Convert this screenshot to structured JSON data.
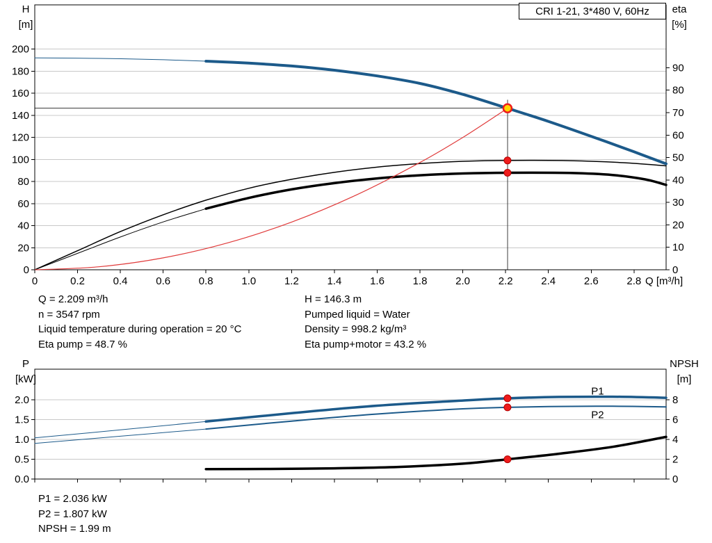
{
  "title_box": "CRI 1-21, 3*480 V, 60Hz",
  "colors": {
    "blue": "#1c5a8a",
    "black": "#000000",
    "red": "#e03a3a",
    "dot_red": "#ee1c1c",
    "duty_fill": "#ffd500",
    "grid": "#c8c8c8",
    "crosshair": "#3c3c3c"
  },
  "info_top": {
    "left": [
      "Q = 2.209 m³/h",
      "n = 3547 rpm",
      "Liquid temperature during operation = 20 °C",
      "Eta pump = 48.7 %"
    ],
    "right": [
      "H = 146.3 m",
      "Pumped liquid = Water",
      "Density = 998.2 kg/m³",
      "Eta pump+motor = 43.2 %"
    ]
  },
  "info_bottom": [
    "P1 = 2.036 kW",
    "P2 = 1.807 kW",
    "NPSH = 1.99 m"
  ],
  "chart_data": [
    {
      "type": "line",
      "title": "CRI 1-21, 3*480 V, 60Hz",
      "xlabel": "Q [m³/h]",
      "ylabel_left_lines": [
        "H",
        "[m]"
      ],
      "ylabel_right_lines": [
        "eta",
        "[%]"
      ],
      "xlim": [
        0,
        2.95
      ],
      "ylim_left": [
        0,
        240
      ],
      "ylim_right": [
        0,
        118
      ],
      "grid": "horizontal",
      "x_ticks": [
        {
          "v": 0,
          "t": "0"
        },
        {
          "v": 0.2,
          "t": "0.2"
        },
        {
          "v": 0.4,
          "t": "0.4"
        },
        {
          "v": 0.6,
          "t": "0.6"
        },
        {
          "v": 0.8,
          "t": "0.8"
        },
        {
          "v": 1.0,
          "t": "1.0"
        },
        {
          "v": 1.2,
          "t": "1.2"
        },
        {
          "v": 1.4,
          "t": "1.4"
        },
        {
          "v": 1.6,
          "t": "1.6"
        },
        {
          "v": 1.8,
          "t": "1.8"
        },
        {
          "v": 2.0,
          "t": "2.0"
        },
        {
          "v": 2.2,
          "t": "2.2"
        },
        {
          "v": 2.4,
          "t": "2.4"
        },
        {
          "v": 2.6,
          "t": "2.6"
        },
        {
          "v": 2.8,
          "t": "2.8"
        }
      ],
      "y_ticks_left": [
        {
          "v": 0,
          "t": "0"
        },
        {
          "v": 20,
          "t": "20"
        },
        {
          "v": 40,
          "t": "40"
        },
        {
          "v": 60,
          "t": "60"
        },
        {
          "v": 80,
          "t": "80"
        },
        {
          "v": 100,
          "t": "100"
        },
        {
          "v": 120,
          "t": "120"
        },
        {
          "v": 140,
          "t": "140"
        },
        {
          "v": 160,
          "t": "160"
        },
        {
          "v": 180,
          "t": "180"
        },
        {
          "v": 200,
          "t": "200"
        }
      ],
      "y_ticks_right": [
        {
          "v": 0,
          "t": "0"
        },
        {
          "v": 10,
          "t": "10"
        },
        {
          "v": 20,
          "t": "20"
        },
        {
          "v": 30,
          "t": "30"
        },
        {
          "v": 40,
          "t": "40"
        },
        {
          "v": 50,
          "t": "50"
        },
        {
          "v": 60,
          "t": "60"
        },
        {
          "v": 70,
          "t": "70"
        },
        {
          "v": 80,
          "t": "80"
        },
        {
          "v": 90,
          "t": "90"
        }
      ],
      "series": [
        {
          "name": "head-ext",
          "axis": "left",
          "color": "blue",
          "width": 1,
          "points": [
            [
              0,
              192
            ],
            [
              0.3,
              191.5
            ],
            [
              0.6,
              190.3
            ],
            [
              0.8,
              189
            ]
          ]
        },
        {
          "name": "head",
          "axis": "left",
          "color": "blue",
          "width": 4,
          "points": [
            [
              0.8,
              189
            ],
            [
              1.0,
              187.2
            ],
            [
              1.2,
              184.6
            ],
            [
              1.4,
              180.8
            ],
            [
              1.6,
              175.6
            ],
            [
              1.8,
              168.8
            ],
            [
              2.0,
              158.9
            ],
            [
              2.209,
              146.3
            ],
            [
              2.4,
              134.4
            ],
            [
              2.6,
              120.9
            ],
            [
              2.8,
              106.9
            ],
            [
              2.95,
              96
            ]
          ]
        },
        {
          "name": "eta-pump",
          "axis": "right",
          "color": "black",
          "width": 1.5,
          "points": [
            [
              0,
              0
            ],
            [
              0.2,
              8.5
            ],
            [
              0.4,
              17
            ],
            [
              0.6,
              24.5
            ],
            [
              0.8,
              31
            ],
            [
              1.0,
              36.3
            ],
            [
              1.2,
              40.3
            ],
            [
              1.4,
              43.4
            ],
            [
              1.6,
              45.7
            ],
            [
              1.8,
              47.3
            ],
            [
              2.0,
              48.3
            ],
            [
              2.209,
              48.7
            ],
            [
              2.5,
              48.6
            ],
            [
              2.75,
              47.7
            ],
            [
              2.95,
              46.3
            ]
          ]
        },
        {
          "name": "eta-pump-motor-ext",
          "axis": "right",
          "color": "black",
          "width": 1,
          "points": [
            [
              0,
              0
            ],
            [
              0.2,
              7.3
            ],
            [
              0.4,
              14.6
            ],
            [
              0.6,
              21.3
            ],
            [
              0.8,
              27.2
            ]
          ]
        },
        {
          "name": "eta-pump-motor",
          "axis": "right",
          "color": "black",
          "width": 3.5,
          "points": [
            [
              0.8,
              27.2
            ],
            [
              1.0,
              32
            ],
            [
              1.2,
              35.8
            ],
            [
              1.4,
              38.6
            ],
            [
              1.6,
              40.7
            ],
            [
              1.8,
              42.1
            ],
            [
              2.0,
              42.9
            ],
            [
              2.209,
              43.2
            ],
            [
              2.5,
              43.1
            ],
            [
              2.7,
              42.2
            ],
            [
              2.85,
              40.3
            ],
            [
              2.95,
              37.8
            ]
          ]
        },
        {
          "name": "system-curve",
          "axis": "left",
          "color": "red",
          "width": 1.2,
          "points": [
            [
              0,
              0
            ],
            [
              0.3,
              2.7
            ],
            [
              0.6,
              10.8
            ],
            [
              0.9,
              24.3
            ],
            [
              1.2,
              43.2
            ],
            [
              1.5,
              67.5
            ],
            [
              1.8,
              97.2
            ],
            [
              2.0,
              119.9
            ],
            [
              2.209,
              146.3
            ]
          ]
        }
      ],
      "crosshair": {
        "x": 2.209,
        "y": 146.3
      },
      "markers": [
        {
          "x": 2.209,
          "y": 146.3,
          "axis": "left",
          "kind": "duty"
        },
        {
          "x": 2.209,
          "y": 48.7,
          "axis": "right",
          "kind": "dot"
        },
        {
          "x": 2.209,
          "y": 43.2,
          "axis": "right",
          "kind": "dot"
        }
      ],
      "labels": []
    },
    {
      "type": "line",
      "title": "",
      "xlabel": "",
      "ylabel_left_lines": [
        "P",
        "[kW]"
      ],
      "ylabel_right_lines": [
        "NPSH",
        "[m]"
      ],
      "xlim": [
        0,
        2.95
      ],
      "ylim_left": [
        0,
        2.77
      ],
      "ylim_right": [
        0,
        11.08
      ],
      "grid": "horizontal",
      "x_ticks": [
        {
          "v": 0,
          "t": ""
        },
        {
          "v": 0.2,
          "t": ""
        },
        {
          "v": 0.4,
          "t": ""
        },
        {
          "v": 0.6,
          "t": ""
        },
        {
          "v": 0.8,
          "t": ""
        },
        {
          "v": 1.0,
          "t": ""
        },
        {
          "v": 1.2,
          "t": ""
        },
        {
          "v": 1.4,
          "t": ""
        },
        {
          "v": 1.6,
          "t": ""
        },
        {
          "v": 1.8,
          "t": ""
        },
        {
          "v": 2.0,
          "t": ""
        },
        {
          "v": 2.2,
          "t": ""
        },
        {
          "v": 2.4,
          "t": ""
        },
        {
          "v": 2.6,
          "t": ""
        },
        {
          "v": 2.8,
          "t": ""
        }
      ],
      "y_ticks_left": [
        {
          "v": 0,
          "t": "0.0"
        },
        {
          "v": 0.5,
          "t": "0.5"
        },
        {
          "v": 1.0,
          "t": "1.0"
        },
        {
          "v": 1.5,
          "t": "1.5"
        },
        {
          "v": 2.0,
          "t": "2.0"
        }
      ],
      "y_ticks_right": [
        {
          "v": 0,
          "t": "0"
        },
        {
          "v": 2,
          "t": "2"
        },
        {
          "v": 4,
          "t": "4"
        },
        {
          "v": 6,
          "t": "6"
        },
        {
          "v": 8,
          "t": "8"
        }
      ],
      "series": [
        {
          "name": "P1-ext",
          "axis": "left",
          "color": "blue",
          "width": 1,
          "points": [
            [
              0,
              1.04
            ],
            [
              0.4,
              1.24
            ],
            [
              0.8,
              1.45
            ]
          ]
        },
        {
          "name": "P1",
          "axis": "left",
          "color": "blue",
          "width": 3.5,
          "points": [
            [
              0.8,
              1.45
            ],
            [
              1.2,
              1.66
            ],
            [
              1.6,
              1.85
            ],
            [
              2.0,
              1.98
            ],
            [
              2.209,
              2.036
            ],
            [
              2.45,
              2.07
            ],
            [
              2.7,
              2.075
            ],
            [
              2.95,
              2.05
            ]
          ]
        },
        {
          "name": "P2-ext",
          "axis": "left",
          "color": "blue",
          "width": 1,
          "points": [
            [
              0,
              0.9
            ],
            [
              0.4,
              1.08
            ],
            [
              0.8,
              1.26
            ]
          ]
        },
        {
          "name": "P2",
          "axis": "left",
          "color": "blue",
          "width": 2,
          "points": [
            [
              0.8,
              1.26
            ],
            [
              1.2,
              1.46
            ],
            [
              1.6,
              1.64
            ],
            [
              2.0,
              1.77
            ],
            [
              2.209,
              1.807
            ],
            [
              2.45,
              1.83
            ],
            [
              2.7,
              1.835
            ],
            [
              2.95,
              1.82
            ]
          ]
        },
        {
          "name": "NPSH",
          "axis": "right",
          "color": "black",
          "width": 3.5,
          "points": [
            [
              0.8,
              1.0
            ],
            [
              1.1,
              1.02
            ],
            [
              1.4,
              1.08
            ],
            [
              1.7,
              1.22
            ],
            [
              2.0,
              1.55
            ],
            [
              2.209,
              1.99
            ],
            [
              2.45,
              2.55
            ],
            [
              2.7,
              3.25
            ],
            [
              2.95,
              4.25
            ]
          ]
        }
      ],
      "crosshair": null,
      "markers": [
        {
          "x": 2.209,
          "y": 2.036,
          "axis": "left",
          "kind": "dot"
        },
        {
          "x": 2.209,
          "y": 1.807,
          "axis": "left",
          "kind": "dot"
        },
        {
          "x": 2.209,
          "y": 1.99,
          "axis": "right",
          "kind": "dot"
        }
      ],
      "labels": [
        {
          "text": "P1",
          "x": 2.6,
          "y": 2.13
        },
        {
          "text": "P2",
          "x": 2.6,
          "y": 1.53
        }
      ]
    }
  ]
}
